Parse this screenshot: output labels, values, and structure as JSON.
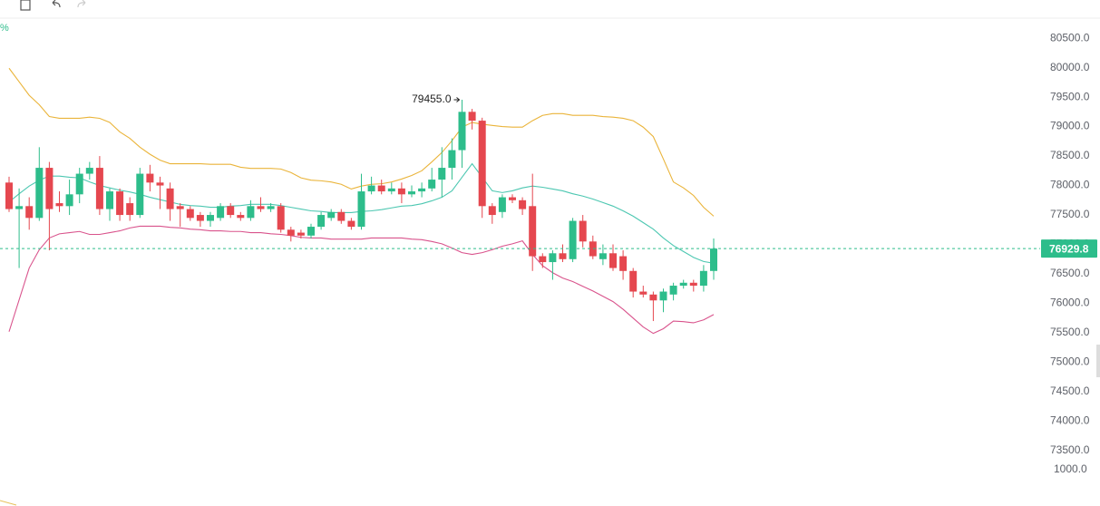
{
  "chart_data": {
    "type": "candlestick",
    "percent_label": "%",
    "volume_axis_label": "1000.0",
    "ylim": [
      73300,
      80840
    ],
    "yticks": [
      {
        "value": 73500,
        "label": "73500.0"
      },
      {
        "value": 74000,
        "label": "74000.0"
      },
      {
        "value": 74500,
        "label": "74500.0"
      },
      {
        "value": 75000,
        "label": "75000.0"
      },
      {
        "value": 75500,
        "label": "75500.0"
      },
      {
        "value": 76000,
        "label": "76000.0"
      },
      {
        "value": 76500,
        "label": "76500.0"
      },
      {
        "value": 77000,
        "label": "77000.0"
      },
      {
        "value": 77500,
        "label": "77500.0"
      },
      {
        "value": 78000,
        "label": "78000.0"
      },
      {
        "value": 78500,
        "label": "78500.0"
      },
      {
        "value": 79000,
        "label": "79000.0"
      },
      {
        "value": 79500,
        "label": "79500.0"
      },
      {
        "value": 80000,
        "label": "80000.0"
      },
      {
        "value": 80500,
        "label": "80500.0"
      }
    ],
    "grid": false,
    "up_color": "#2dbd8b",
    "down_color": "#e5474f",
    "open": [
      78050,
      77600,
      77650,
      77450,
      78300,
      77700,
      77650,
      77850,
      78200,
      78300,
      77600,
      77900,
      77700,
      77500,
      78200,
      78050,
      77950,
      77650,
      77600,
      77500,
      77400,
      77450,
      77650,
      77500,
      77450,
      77650,
      77600,
      77650,
      77250,
      77200,
      77150,
      77300,
      77450,
      77550,
      77400,
      77300,
      77900,
      78000,
      77900,
      77950,
      77850,
      77900,
      77950,
      78100,
      78300,
      78600,
      79250,
      79100,
      77650,
      77550,
      77800,
      77750,
      77650,
      76800,
      76700,
      76850,
      76750,
      77400,
      77050,
      76750,
      76850,
      76800,
      76550,
      76200,
      76150,
      76050,
      76150,
      76300,
      76350,
      76300,
      76550
    ],
    "high": [
      78150,
      77950,
      77800,
      78650,
      78400,
      77900,
      78100,
      78300,
      78400,
      78500,
      77950,
      77950,
      77800,
      78300,
      78350,
      78150,
      78050,
      77700,
      77650,
      77550,
      77550,
      77700,
      77700,
      77550,
      77750,
      77800,
      77700,
      77700,
      77300,
      77250,
      77350,
      77550,
      77600,
      77600,
      77450,
      78200,
      78150,
      78100,
      78050,
      78050,
      78000,
      78050,
      78300,
      78650,
      78800,
      79455,
      79300,
      79150,
      77700,
      77850,
      77850,
      77800,
      78200,
      76850,
      76900,
      77000,
      77450,
      77500,
      77150,
      77000,
      77000,
      76900,
      76600,
      76300,
      76200,
      76250,
      76350,
      76400,
      76400,
      76650,
      77100
    ],
    "low": [
      77550,
      76600,
      77250,
      77400,
      76900,
      77550,
      77500,
      77700,
      78100,
      77500,
      77400,
      77400,
      77400,
      77450,
      77900,
      77600,
      77400,
      77300,
      77400,
      77300,
      77300,
      77400,
      77450,
      77400,
      77400,
      77550,
      77550,
      77200,
      77050,
      77100,
      77100,
      77250,
      77400,
      77350,
      77250,
      77250,
      77850,
      77850,
      77850,
      77700,
      77800,
      77800,
      77900,
      77800,
      78100,
      78300,
      78950,
      77450,
      77350,
      77450,
      77700,
      77500,
      76550,
      76600,
      76400,
      76700,
      76700,
      76950,
      76750,
      76650,
      76550,
      76400,
      76100,
      76100,
      75700,
      75850,
      76050,
      76250,
      76200,
      76200,
      76400
    ],
    "close": [
      77600,
      77650,
      77450,
      78300,
      77600,
      77650,
      77850,
      78200,
      78300,
      77600,
      77900,
      77500,
      77500,
      78200,
      78050,
      78000,
      77600,
      77600,
      77450,
      77400,
      77500,
      77650,
      77500,
      77450,
      77650,
      77600,
      77650,
      77250,
      77150,
      77150,
      77300,
      77500,
      77550,
      77400,
      77300,
      77900,
      78000,
      77900,
      77950,
      77850,
      77900,
      77950,
      78100,
      78300,
      78600,
      79250,
      79100,
      77650,
      77500,
      77800,
      77750,
      77600,
      76800,
      76700,
      76850,
      76750,
      77400,
      77050,
      76800,
      76850,
      76600,
      76550,
      76200,
      76150,
      76050,
      76200,
      76300,
      76350,
      76300,
      76550,
      76929.8
    ],
    "bands": [
      {
        "color": "#eab43a",
        "values": [
          79990,
          79760,
          79530,
          79370,
          79170,
          79140,
          79140,
          79140,
          79160,
          79140,
          79070,
          78910,
          78800,
          78650,
          78530,
          78430,
          78370,
          78370,
          78370,
          78370,
          78360,
          78360,
          78360,
          78310,
          78290,
          78290,
          78290,
          78280,
          78220,
          78130,
          78090,
          78080,
          78060,
          78020,
          77940,
          77990,
          78020,
          78030,
          78060,
          78110,
          78170,
          78250,
          78400,
          78560,
          78760,
          78990,
          79070,
          79040,
          79020,
          79000,
          78990,
          78990,
          79100,
          79190,
          79220,
          79220,
          79190,
          79190,
          79190,
          79170,
          79160,
          79140,
          79100,
          78990,
          78830,
          78450,
          78060,
          77960,
          77830,
          77630,
          77480
        ]
      },
      {
        "color": "#4cc7b1",
        "values": [
          77720,
          77860,
          77990,
          78090,
          78160,
          78160,
          78140,
          78130,
          78060,
          78000,
          77960,
          77920,
          77890,
          77850,
          77800,
          77760,
          77720,
          77680,
          77660,
          77650,
          77630,
          77630,
          77650,
          77660,
          77680,
          77680,
          77680,
          77660,
          77630,
          77600,
          77570,
          77560,
          77540,
          77540,
          77540,
          77560,
          77570,
          77590,
          77620,
          77650,
          77660,
          77690,
          77740,
          77800,
          77910,
          78140,
          78370,
          78140,
          77910,
          77880,
          77910,
          77960,
          77990,
          77970,
          77940,
          77910,
          77860,
          77820,
          77770,
          77710,
          77650,
          77570,
          77480,
          77370,
          77260,
          77110,
          76980,
          76880,
          76780,
          76710,
          76680
        ]
      },
      {
        "color": "#d9538c",
        "values": [
          75520,
          76060,
          76600,
          76910,
          77110,
          77180,
          77200,
          77220,
          77170,
          77170,
          77200,
          77230,
          77280,
          77310,
          77310,
          77310,
          77290,
          77280,
          77260,
          77250,
          77230,
          77230,
          77220,
          77220,
          77200,
          77200,
          77180,
          77170,
          77150,
          77120,
          77110,
          77110,
          77090,
          77090,
          77090,
          77090,
          77110,
          77110,
          77110,
          77110,
          77090,
          77080,
          77050,
          77010,
          76940,
          76860,
          76830,
          76860,
          76910,
          76970,
          77010,
          77060,
          76830,
          76640,
          76520,
          76430,
          76370,
          76290,
          76210,
          76120,
          76030,
          75900,
          75750,
          75600,
          75490,
          75570,
          75700,
          75690,
          75670,
          75720,
          75810
        ]
      }
    ],
    "high_marker": {
      "value": 79455,
      "label": "79455.0"
    },
    "current_price": {
      "value": 76929.8,
      "label": "76929.8",
      "color": "#2dbd8b"
    }
  }
}
